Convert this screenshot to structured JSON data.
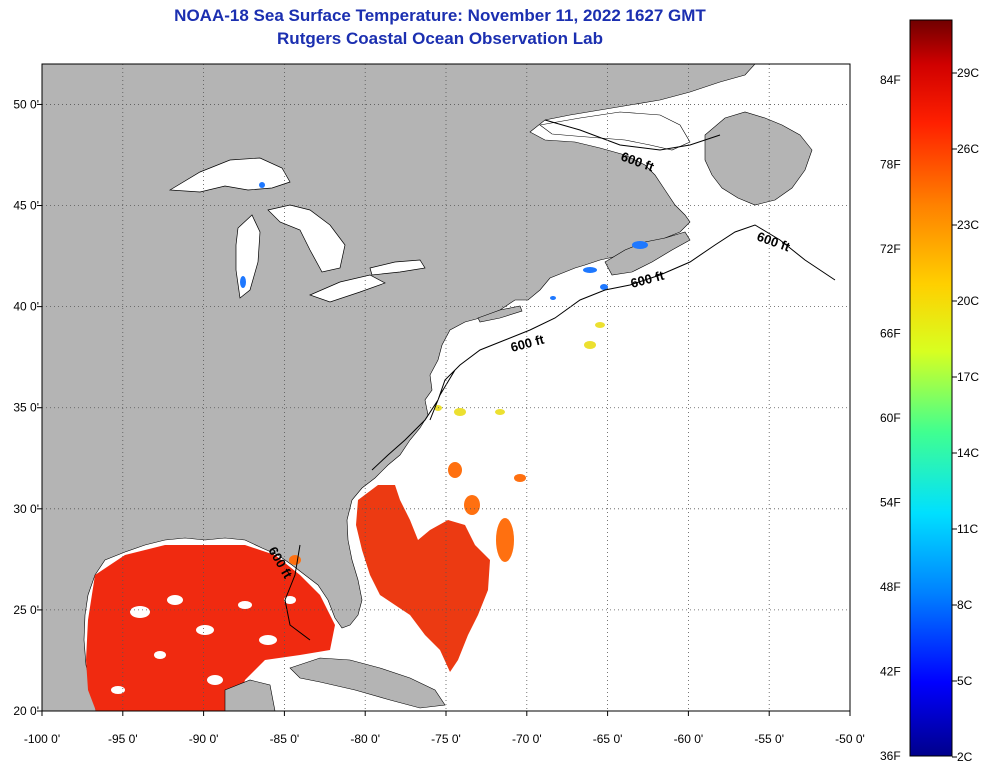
{
  "header": {
    "title": "NOAA-18 Sea Surface Temperature:  November 11, 2022 1627 GMT",
    "subtitle": "Rutgers Coastal Ocean Observation Lab"
  },
  "map": {
    "lon_range": [
      -100,
      -50
    ],
    "lat_range": [
      20,
      52
    ],
    "lon_ticks": [
      {
        "value": -100,
        "label": "-100 0'"
      },
      {
        "value": -95,
        "label": "-95 0'"
      },
      {
        "value": -90,
        "label": "-90 0'"
      },
      {
        "value": -85,
        "label": "-85 0'"
      },
      {
        "value": -80,
        "label": "-80 0'"
      },
      {
        "value": -75,
        "label": "-75 0'"
      },
      {
        "value": -70,
        "label": "-70 0'"
      },
      {
        "value": -65,
        "label": "-65 0'"
      },
      {
        "value": -60,
        "label": "-60 0'"
      },
      {
        "value": -55,
        "label": "-55 0'"
      },
      {
        "value": -50,
        "label": "-50 0'"
      }
    ],
    "lat_ticks": [
      {
        "value": 20,
        "label": "20 0'"
      },
      {
        "value": 25,
        "label": "25 0'"
      },
      {
        "value": 30,
        "label": "30 0'"
      },
      {
        "value": 35,
        "label": "35 0'"
      },
      {
        "value": 40,
        "label": "40 0'"
      },
      {
        "value": 45,
        "label": "45 0'"
      },
      {
        "value": 50,
        "label": "50 0'"
      }
    ],
    "contour_label": "600 ft",
    "colors": {
      "land": "#b4b4b4",
      "ocean": "#ffffff",
      "gulf_sst": "#f02a10"
    }
  },
  "colorbar": {
    "fahrenheit_labels": [
      "84F",
      "78F",
      "72F",
      "66F",
      "60F",
      "54F",
      "48F",
      "42F",
      "36F"
    ],
    "celsius_labels": [
      "29C",
      "26C",
      "23C",
      "20C",
      "17C",
      "14C",
      "11C",
      "8C",
      "5C",
      "2C"
    ],
    "colors": [
      "#00008b",
      "#0000ff",
      "#0080ff",
      "#00e0ff",
      "#40ff90",
      "#d8ff20",
      "#ffd000",
      "#ff8000",
      "#ff2000",
      "#d00000",
      "#700000"
    ]
  }
}
